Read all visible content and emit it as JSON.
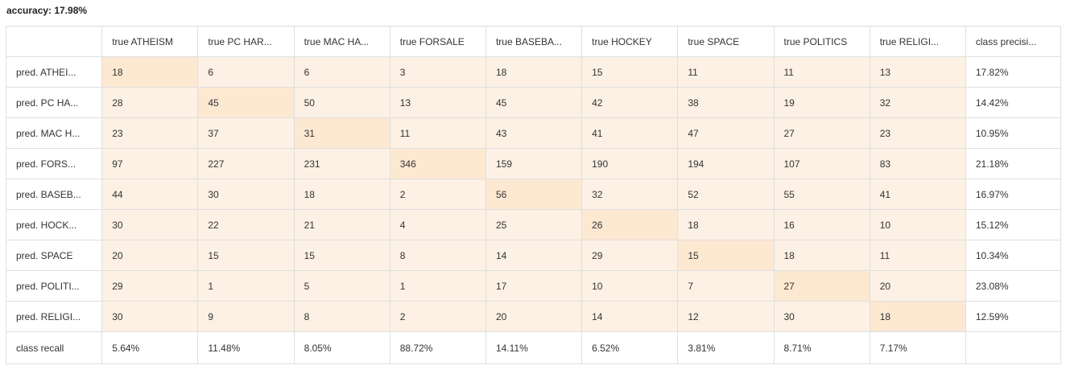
{
  "accuracy_label": "accuracy: 17.98%",
  "col_headers": [
    "true ATHEISM",
    "true PC HAR...",
    "true MAC HA...",
    "true FORSALE",
    "true BASEBA...",
    "true HOCKEY",
    "true SPACE",
    "true POLITICS",
    "true RELIGI...",
    "class precisi..."
  ],
  "rows": [
    {
      "label": "pred. ATHEI...",
      "values": [
        "18",
        "6",
        "6",
        "3",
        "18",
        "15",
        "11",
        "11",
        "13"
      ],
      "precision": "17.82%"
    },
    {
      "label": "pred. PC HA...",
      "values": [
        "28",
        "45",
        "50",
        "13",
        "45",
        "42",
        "38",
        "19",
        "32"
      ],
      "precision": "14.42%"
    },
    {
      "label": "pred. MAC H...",
      "values": [
        "23",
        "37",
        "31",
        "11",
        "43",
        "41",
        "47",
        "27",
        "23"
      ],
      "precision": "10.95%"
    },
    {
      "label": "pred. FORS...",
      "values": [
        "97",
        "227",
        "231",
        "346",
        "159",
        "190",
        "194",
        "107",
        "83"
      ],
      "precision": "21.18%"
    },
    {
      "label": "pred. BASEB...",
      "values": [
        "44",
        "30",
        "18",
        "2",
        "56",
        "32",
        "52",
        "55",
        "41"
      ],
      "precision": "16.97%"
    },
    {
      "label": "pred. HOCK...",
      "values": [
        "30",
        "22",
        "21",
        "4",
        "25",
        "26",
        "18",
        "16",
        "10"
      ],
      "precision": "15.12%"
    },
    {
      "label": "pred. SPACE",
      "values": [
        "20",
        "15",
        "15",
        "8",
        "14",
        "29",
        "15",
        "18",
        "11"
      ],
      "precision": "10.34%"
    },
    {
      "label": "pred. POLITI...",
      "values": [
        "29",
        "1",
        "5",
        "1",
        "17",
        "10",
        "7",
        "27",
        "20"
      ],
      "precision": "23.08%"
    },
    {
      "label": "pred. RELIGI...",
      "values": [
        "30",
        "9",
        "8",
        "2",
        "20",
        "14",
        "12",
        "30",
        "18"
      ],
      "precision": "12.59%"
    }
  ],
  "recall_row": {
    "label": "class recall",
    "values": [
      "5.64%",
      "11.48%",
      "8.05%",
      "88.72%",
      "14.11%",
      "6.52%",
      "3.81%",
      "8.71%",
      "7.17%"
    ]
  },
  "colors": {
    "cell_background": "#fcf1e4",
    "diagonal_background": "#fde8d2",
    "grid_border": "#dfdfdf"
  }
}
